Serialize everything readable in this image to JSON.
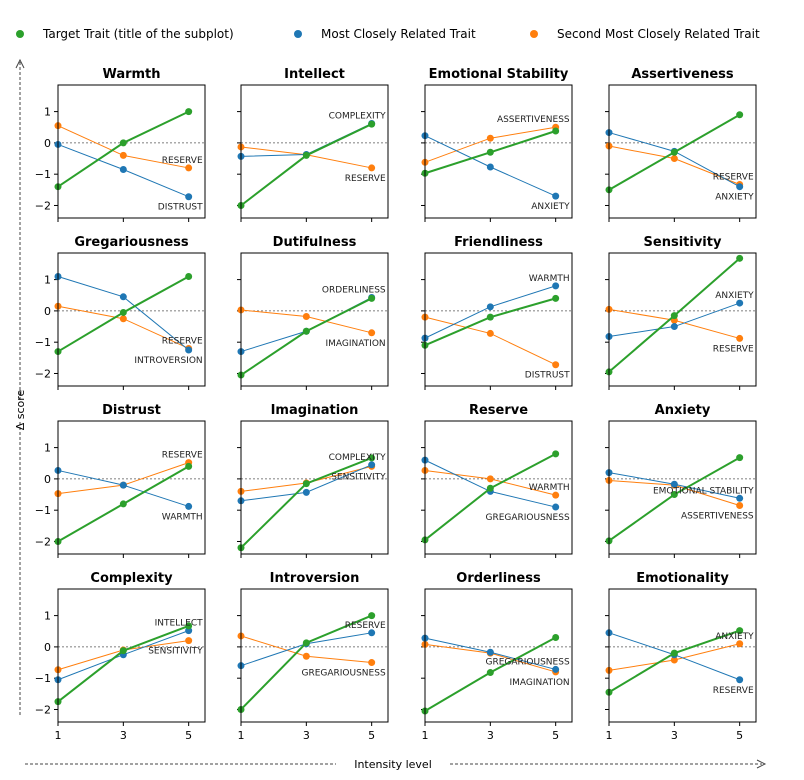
{
  "chart_data": {
    "type": "line",
    "legend": {
      "placement": "top",
      "entries": [
        {
          "name": "Target Trait (title of the subplot)",
          "color": "#2ca02c"
        },
        {
          "name": "Most Closely Related Trait",
          "color": "#1f77b4"
        },
        {
          "name": "Second Most Closely Related Trait",
          "color": "#ff7f0e"
        }
      ]
    },
    "xlabel": "Intensity level",
    "ylabel": "Δ score",
    "x": [
      1,
      3,
      5
    ],
    "xticks": [
      "1",
      "3",
      "5"
    ],
    "yticks": [
      "1",
      "0",
      "−1",
      "−2"
    ],
    "ytick_values": [
      1,
      0,
      -1,
      -2
    ],
    "xlim": [
      1,
      5.5
    ],
    "ylim": [
      -2.4,
      1.85
    ],
    "reference_line": 0,
    "grid": false,
    "subplots": [
      {
        "title": "Warmth",
        "target": [
          -1.4,
          0,
          1.0
        ],
        "most": [
          -0.05,
          -0.85,
          -1.72
        ],
        "second": [
          0.55,
          -0.4,
          -0.8
        ],
        "most_label": "DISTRUST",
        "second_label": "RESERVE"
      },
      {
        "title": "Intellect",
        "target": [
          -2.0,
          -0.4,
          0.6
        ],
        "most": [
          -0.43,
          -0.37,
          0.62
        ],
        "second": [
          -0.13,
          -0.38,
          -0.8
        ],
        "most_label": "COMPLEXITY",
        "second_label": "RESERVE"
      },
      {
        "title": "Emotional Stability",
        "target": [
          -0.97,
          -0.3,
          0.38
        ],
        "most": [
          0.23,
          -0.77,
          -1.7
        ],
        "second": [
          -0.62,
          0.15,
          0.5
        ],
        "most_label": "ANXIETY",
        "second_label": "ASSERTIVENESS"
      },
      {
        "title": "Assertiveness",
        "target": [
          -1.5,
          -0.3,
          0.9
        ],
        "most": [
          0.33,
          -0.27,
          -1.4
        ],
        "second": [
          -0.1,
          -0.5,
          -1.33
        ],
        "most_label": "ANXIETY",
        "second_label": "RESERVE"
      },
      {
        "title": "Gregariousness",
        "target": [
          -1.3,
          -0.05,
          1.1
        ],
        "most": [
          1.1,
          0.45,
          -1.25
        ],
        "second": [
          0.15,
          -0.25,
          -1.2
        ],
        "most_label": "INTROVERSION",
        "second_label": "RESERVE"
      },
      {
        "title": "Dutifulness",
        "target": [
          -2.05,
          -0.65,
          0.4
        ],
        "most": [
          -1.3,
          -0.65,
          0.43
        ],
        "second": [
          0.03,
          -0.18,
          -0.7
        ],
        "most_label": "ORDERLINESS",
        "second_label": "IMAGINATION"
      },
      {
        "title": "Friendliness",
        "target": [
          -1.1,
          -0.2,
          0.4
        ],
        "most": [
          -0.87,
          0.13,
          0.8
        ],
        "second": [
          -0.2,
          -0.72,
          -1.72
        ],
        "most_label": "WARMTH",
        "second_label": "DISTRUST"
      },
      {
        "title": "Sensitivity",
        "target": [
          -1.95,
          -0.15,
          1.68
        ],
        "most": [
          -0.82,
          -0.5,
          0.25
        ],
        "second": [
          0.05,
          -0.3,
          -0.88
        ],
        "most_label": "ANXIETY",
        "second_label": "RESERVE"
      },
      {
        "title": "Distrust",
        "target": [
          -2.0,
          -0.8,
          0.4
        ],
        "most": [
          0.27,
          -0.2,
          -0.88
        ],
        "second": [
          -0.47,
          -0.2,
          0.52
        ],
        "most_label": "WARMTH",
        "second_label": "RESERVE"
      },
      {
        "title": "Imagination",
        "target": [
          -2.2,
          -0.15,
          0.67
        ],
        "most": [
          -0.7,
          -0.43,
          0.45
        ],
        "second": [
          -0.4,
          -0.13,
          0.4
        ],
        "most_label": "COMPLEXITY",
        "second_label": "SENSITIVITY"
      },
      {
        "title": "Reserve",
        "target": [
          -1.95,
          -0.3,
          0.8
        ],
        "most": [
          0.6,
          -0.4,
          -0.9
        ],
        "second": [
          0.27,
          0.0,
          -0.52
        ],
        "most_label": "GREGARIOUSNESS",
        "second_label": "WARMTH"
      },
      {
        "title": "Anxiety",
        "target": [
          -1.98,
          -0.5,
          0.68
        ],
        "most": [
          0.2,
          -0.17,
          -0.62
        ],
        "second": [
          -0.05,
          -0.2,
          -0.85
        ],
        "most_label": "EMOTIONAL STABILITY",
        "second_label": "ASSERTIVENESS"
      },
      {
        "title": "Complexity",
        "target": [
          -1.75,
          -0.12,
          0.67
        ],
        "most": [
          -1.05,
          -0.25,
          0.52
        ],
        "second": [
          -0.73,
          -0.1,
          0.2
        ],
        "most_label": "INTELLECT",
        "second_label": "SENSITIVITY"
      },
      {
        "title": "Introversion",
        "target": [
          -2.0,
          0.13,
          1.0
        ],
        "most": [
          -0.6,
          0.1,
          0.45
        ],
        "second": [
          0.35,
          -0.3,
          -0.5
        ],
        "most_label": "RESERVE",
        "second_label": "GREGARIOUSNESS"
      },
      {
        "title": "Orderliness",
        "target": [
          -2.05,
          -0.82,
          0.3
        ],
        "most": [
          0.28,
          -0.17,
          -0.72
        ],
        "second": [
          0.08,
          -0.2,
          -0.8
        ],
        "most_label": "GREGARIOUSNESS",
        "second_label": "IMAGINATION"
      },
      {
        "title": "Emotionality",
        "target": [
          -1.45,
          -0.2,
          0.52
        ],
        "most": [
          0.45,
          -0.25,
          -1.05
        ],
        "second": [
          -0.75,
          -0.42,
          0.1
        ],
        "most_label": "RESERVE",
        "second_label": "ANXIETY"
      }
    ]
  }
}
